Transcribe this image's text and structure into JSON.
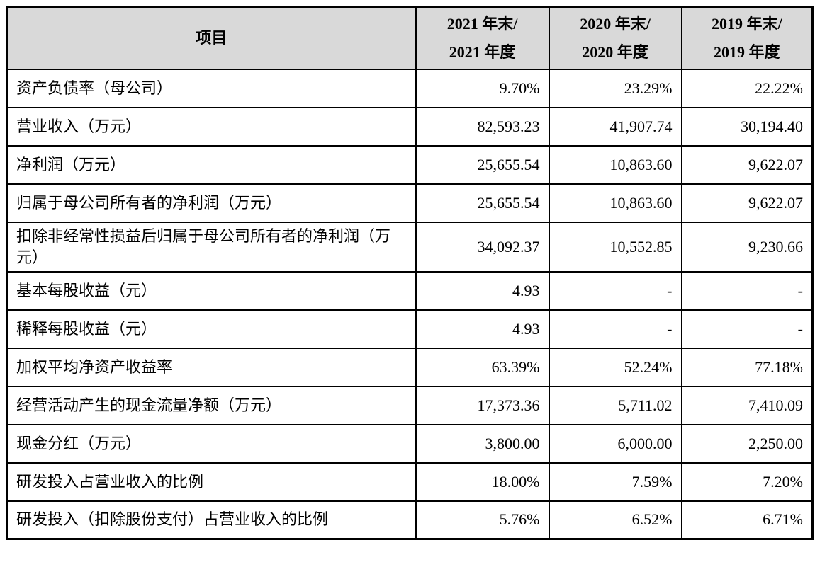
{
  "table": {
    "header": {
      "item_label": "项目",
      "periods": [
        {
          "line1": "2021 年末/",
          "line2": "2021 年度"
        },
        {
          "line1": "2020 年末/",
          "line2": "2020 年度"
        },
        {
          "line1": "2019 年末/",
          "line2": "2019 年度"
        }
      ]
    },
    "rows": [
      {
        "label": "资产负债率（母公司）",
        "values": [
          "9.70%",
          "23.29%",
          "22.22%"
        ]
      },
      {
        "label": "营业收入（万元）",
        "values": [
          "82,593.23",
          "41,907.74",
          "30,194.40"
        ]
      },
      {
        "label": "净利润（万元）",
        "values": [
          "25,655.54",
          "10,863.60",
          "9,622.07"
        ]
      },
      {
        "label": "归属于母公司所有者的净利润（万元）",
        "values": [
          "25,655.54",
          "10,863.60",
          "9,622.07"
        ]
      },
      {
        "label": "扣除非经常性损益后归属于母公司所有者的净利润（万元）",
        "values": [
          "34,092.37",
          "10,552.85",
          "9,230.66"
        ]
      },
      {
        "label": "基本每股收益（元）",
        "values": [
          "4.93",
          "-",
          "-"
        ]
      },
      {
        "label": "稀释每股收益（元）",
        "values": [
          "4.93",
          "-",
          "-"
        ]
      },
      {
        "label": "加权平均净资产收益率",
        "values": [
          "63.39%",
          "52.24%",
          "77.18%"
        ]
      },
      {
        "label": "经营活动产生的现金流量净额（万元）",
        "values": [
          "17,373.36",
          "5,711.02",
          "7,410.09"
        ]
      },
      {
        "label": "现金分红（万元）",
        "values": [
          "3,800.00",
          "6,000.00",
          "2,250.00"
        ]
      },
      {
        "label": "研发投入占营业收入的比例",
        "values": [
          "18.00%",
          "7.59%",
          "7.20%"
        ]
      },
      {
        "label": "研发投入（扣除股份支付）占营业收入的比例",
        "values": [
          "5.76%",
          "6.52%",
          "6.71%"
        ]
      }
    ],
    "colors": {
      "header_bg": "#d9d9d9",
      "border": "#000000",
      "text": "#000000",
      "page_bg": "#ffffff"
    }
  }
}
